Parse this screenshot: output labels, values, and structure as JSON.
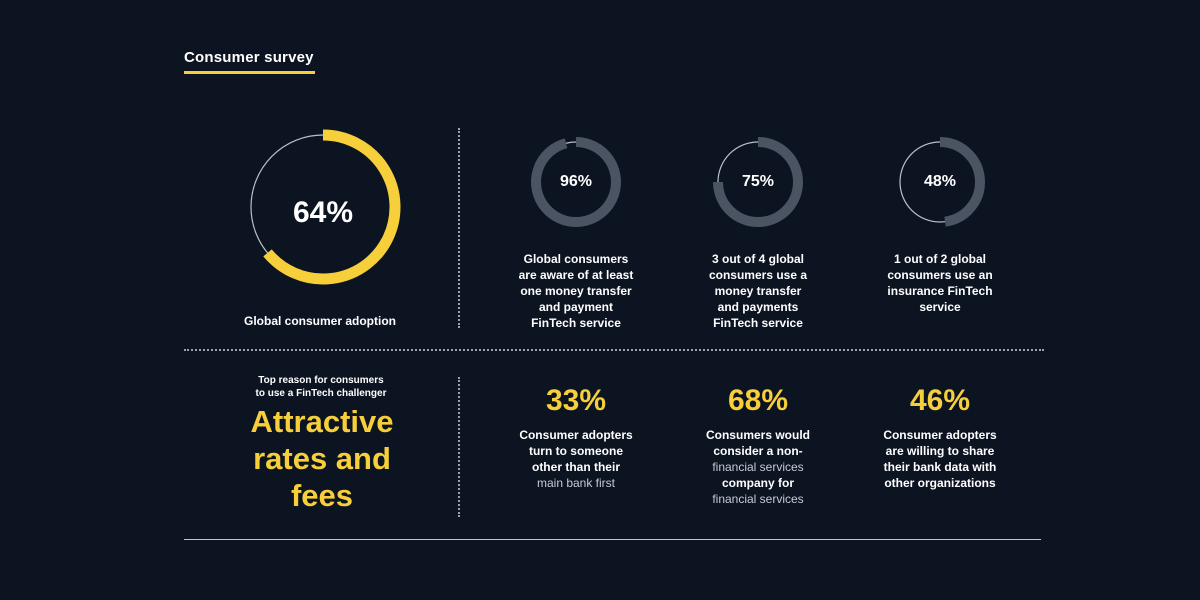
{
  "header": {
    "title": "Consumer survey"
  },
  "chart_data": [
    {
      "type": "pie",
      "variant": "donut",
      "value": 64,
      "value_label": "64%",
      "label": "Global consumer adoption",
      "color": "#f7cf3b"
    },
    {
      "type": "pie",
      "variant": "donut",
      "value": 96,
      "value_label": "96%",
      "label": "Global consumers are aware of at least one money transfer and payment FinTech service",
      "color": "#4a5463"
    },
    {
      "type": "pie",
      "variant": "donut",
      "value": 75,
      "value_label": "75%",
      "label": "3 out of 4 global consumers use a money transfer and payments FinTech service",
      "color": "#4a5463"
    },
    {
      "type": "pie",
      "variant": "donut",
      "value": 48,
      "value_label": "48%",
      "label": "1 out of 2 global consumers use an insurance FinTech service",
      "color": "#4a5463"
    }
  ],
  "captions": {
    "c0": [
      "Global consumer adoption"
    ],
    "c1": [
      "Global consumers",
      "are aware of at least",
      "one money transfer",
      "and payment",
      "FinTech service"
    ],
    "c2": [
      "3 out of 4 global",
      "consumers use a",
      "money transfer",
      "and payments",
      "FinTech service"
    ],
    "c3": [
      "1 out of 2 global",
      "consumers use an",
      "insurance FinTech",
      "service"
    ]
  },
  "reason": {
    "label_line1": "Top reason for consumers",
    "label_line2": "to use a FinTech challenger",
    "value_line1": "Attractive",
    "value_line2": "rates and",
    "value_line3": "fees"
  },
  "stats": [
    {
      "value": "33%",
      "lines": [
        "Consumer adopters",
        "turn to someone",
        "other than their",
        "main bank first"
      ]
    },
    {
      "value": "68%",
      "lines": [
        "Consumers would",
        "consider a non-",
        "financial services",
        "company for",
        "financial services"
      ]
    },
    {
      "value": "46%",
      "lines": [
        "Consumer adopters",
        "are willing to share",
        "their bank data with",
        "other organizations"
      ]
    }
  ],
  "colors": {
    "accent": "#f7cf3b",
    "ring": "#4a5463",
    "background": "#0d1421"
  }
}
